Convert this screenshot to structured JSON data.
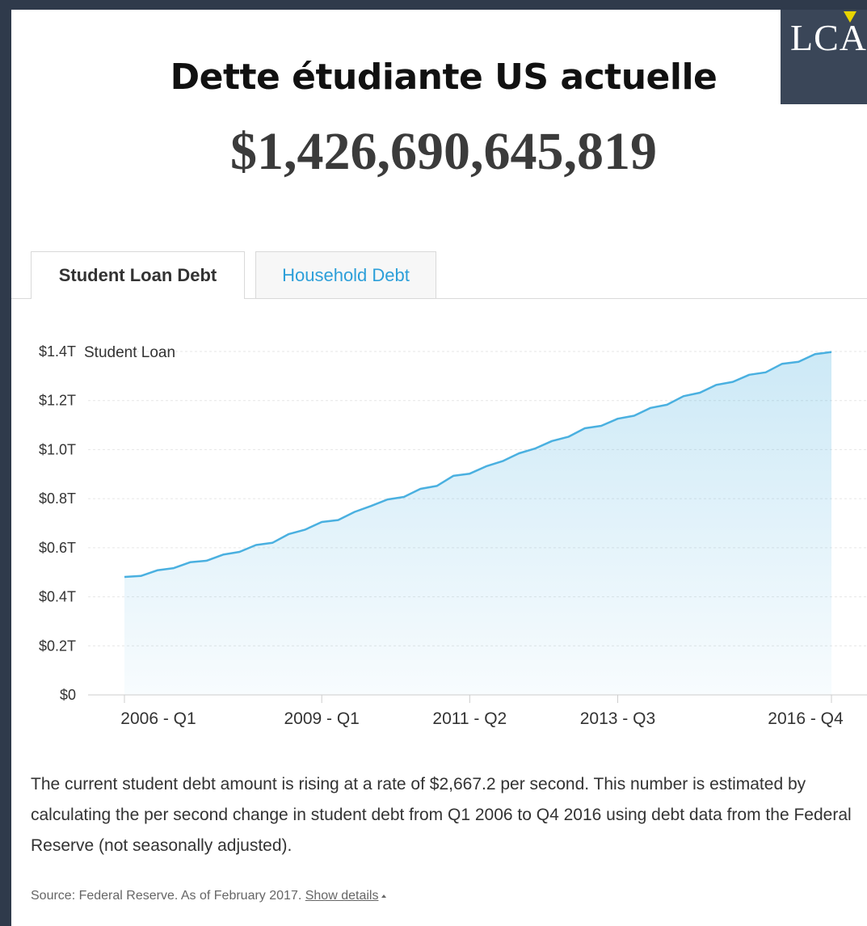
{
  "headline": "Dette étudiante US actuelle",
  "amount": "$1,426,690,645,819",
  "logo": {
    "text": "LCA",
    "accent_color": "#e8d400",
    "bg_color": "#3a4658"
  },
  "tabs": [
    {
      "label": "Student Loan Debt",
      "active": true
    },
    {
      "label": "Household Debt",
      "active": false
    }
  ],
  "chart_data": {
    "type": "area",
    "series": [
      {
        "name": "Student Loan",
        "color": "#4ab0e0",
        "values": [
          0.481,
          0.485,
          0.508,
          0.517,
          0.541,
          0.547,
          0.572,
          0.583,
          0.611,
          0.62,
          0.656,
          0.674,
          0.705,
          0.713,
          0.746,
          0.77,
          0.797,
          0.807,
          0.84,
          0.852,
          0.893,
          0.902,
          0.932,
          0.953,
          0.985,
          1.005,
          1.035,
          1.052,
          1.087,
          1.097,
          1.126,
          1.138,
          1.17,
          1.183,
          1.218,
          1.232,
          1.264,
          1.276,
          1.305,
          1.315,
          1.35,
          1.358,
          1.389,
          1.398
        ]
      }
    ],
    "x_start": "2006 - Q1",
    "x_end": "2016 - Q4",
    "xticks": [
      {
        "label": "2006 - Q1",
        "index": 0
      },
      {
        "label": "2009 - Q1",
        "index": 12
      },
      {
        "label": "2011 - Q2",
        "index": 21
      },
      {
        "label": "2013 - Q3",
        "index": 30
      },
      {
        "label": "2016 - Q4",
        "index": 43
      }
    ],
    "yticks": [
      {
        "value": 0,
        "label": "$0"
      },
      {
        "value": 0.2,
        "label": "$0.2T"
      },
      {
        "value": 0.4,
        "label": "$0.4T"
      },
      {
        "value": 0.6,
        "label": "$0.6T"
      },
      {
        "value": 0.8,
        "label": "$0.8T"
      },
      {
        "value": 1.0,
        "label": "$1.0T"
      },
      {
        "value": 1.2,
        "label": "$1.2T"
      },
      {
        "value": 1.4,
        "label": "$1.4T"
      }
    ],
    "ylim": [
      0,
      1.4
    ],
    "grid": true,
    "title": "",
    "xlabel": "",
    "ylabel": ""
  },
  "description": "The current student debt amount is rising at a rate of $2,667.2 per second. This number is estimated by calculating the per second change in student debt from Q1 2006 to Q4 2016 using debt data from the Federal Reserve (not seasonally adjusted).",
  "source": {
    "text": "Source: Federal Reserve. As of February 2017.",
    "link": "Show details"
  }
}
